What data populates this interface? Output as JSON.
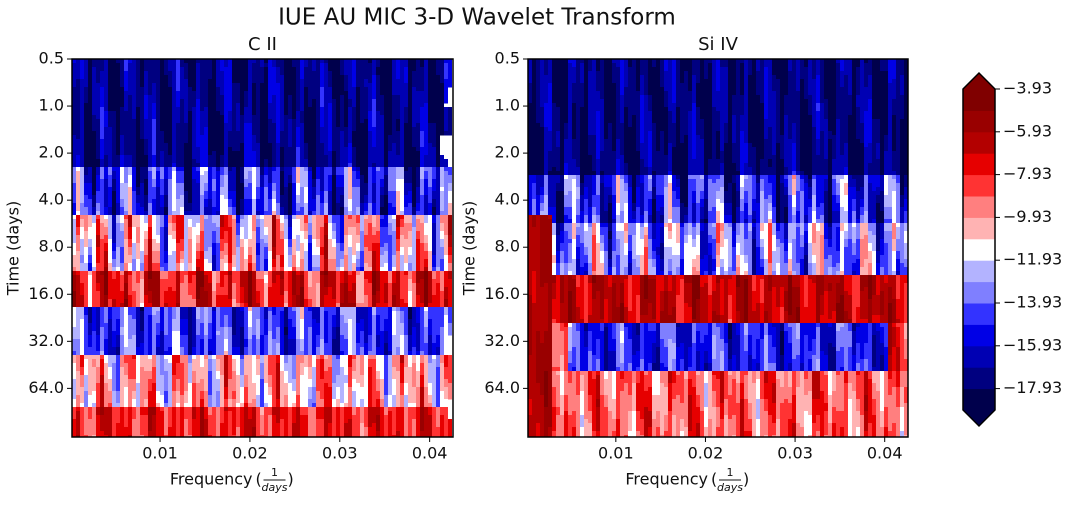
{
  "title": "IUE AU MIC 3-D Wavelet Transform",
  "chart_data": [
    {
      "type": "contour",
      "title": "C II",
      "xlabel": {
        "text": "Frequency",
        "num": "1",
        "den": "days"
      },
      "ylabel": "Time (days)",
      "xlim": [
        0.0002,
        0.0426
      ],
      "xticks": [
        0.01,
        0.02,
        0.03,
        0.04
      ],
      "ylim": [
        0.5,
        131
      ],
      "yscale": "log",
      "y_inverted": true,
      "yticks": [
        0.5,
        {
          "value": 1,
          "label": "1.0"
        },
        {
          "value": 2,
          "label": "2.0"
        },
        {
          "value": 4,
          "label": "4.0"
        },
        {
          "value": 8,
          "label": "8.0"
        },
        {
          "value": 16,
          "label": "16.0"
        },
        {
          "value": 32,
          "label": "32.0"
        },
        {
          "value": 64,
          "label": "64.0"
        }
      ]
    },
    {
      "type": "contour",
      "title": "Si IV",
      "xlabel": {
        "text": "Frequency",
        "num": "1",
        "den": "days"
      },
      "ylabel": "Time (days)",
      "xlim": [
        0.0002,
        0.0426
      ],
      "xticks": [
        0.01,
        0.02,
        0.03,
        0.04
      ],
      "ylim": [
        0.5,
        131
      ],
      "yscale": "log",
      "y_inverted": true,
      "yticks": [
        0.5,
        {
          "value": 1,
          "label": "1.0"
        },
        {
          "value": 2,
          "label": "2.0"
        },
        {
          "value": 4,
          "label": "4.0"
        },
        {
          "value": 8,
          "label": "8.0"
        },
        {
          "value": 16,
          "label": "16.0"
        },
        {
          "value": 32,
          "label": "32.0"
        },
        {
          "value": 64,
          "label": "64.0"
        }
      ]
    },
    {
      "type": "colorbar",
      "clim": [
        -18.93,
        -3.93
      ],
      "colors": [
        "#00004c",
        "#000080",
        "#0000b3",
        "#0000e6",
        "#3333ff",
        "#7f7fff",
        "#b3b3ff",
        "#ffffff",
        "#ffb3b3",
        "#ff7f7f",
        "#ff3333",
        "#e60000",
        "#b30000",
        "#990000",
        "#800000"
      ],
      "ticks": [
        {
          "value": -3.93,
          "label": "−3.93"
        },
        {
          "value": -5.93,
          "label": "−5.93"
        },
        {
          "value": -7.93,
          "label": "−7.93"
        },
        {
          "value": -9.93,
          "label": "−9.93"
        },
        {
          "value": -11.93,
          "label": "−11.93"
        },
        {
          "value": -13.93,
          "label": "−13.93"
        },
        {
          "value": -15.93,
          "label": "−15.93"
        },
        {
          "value": -17.93,
          "label": "−17.93"
        }
      ]
    }
  ]
}
